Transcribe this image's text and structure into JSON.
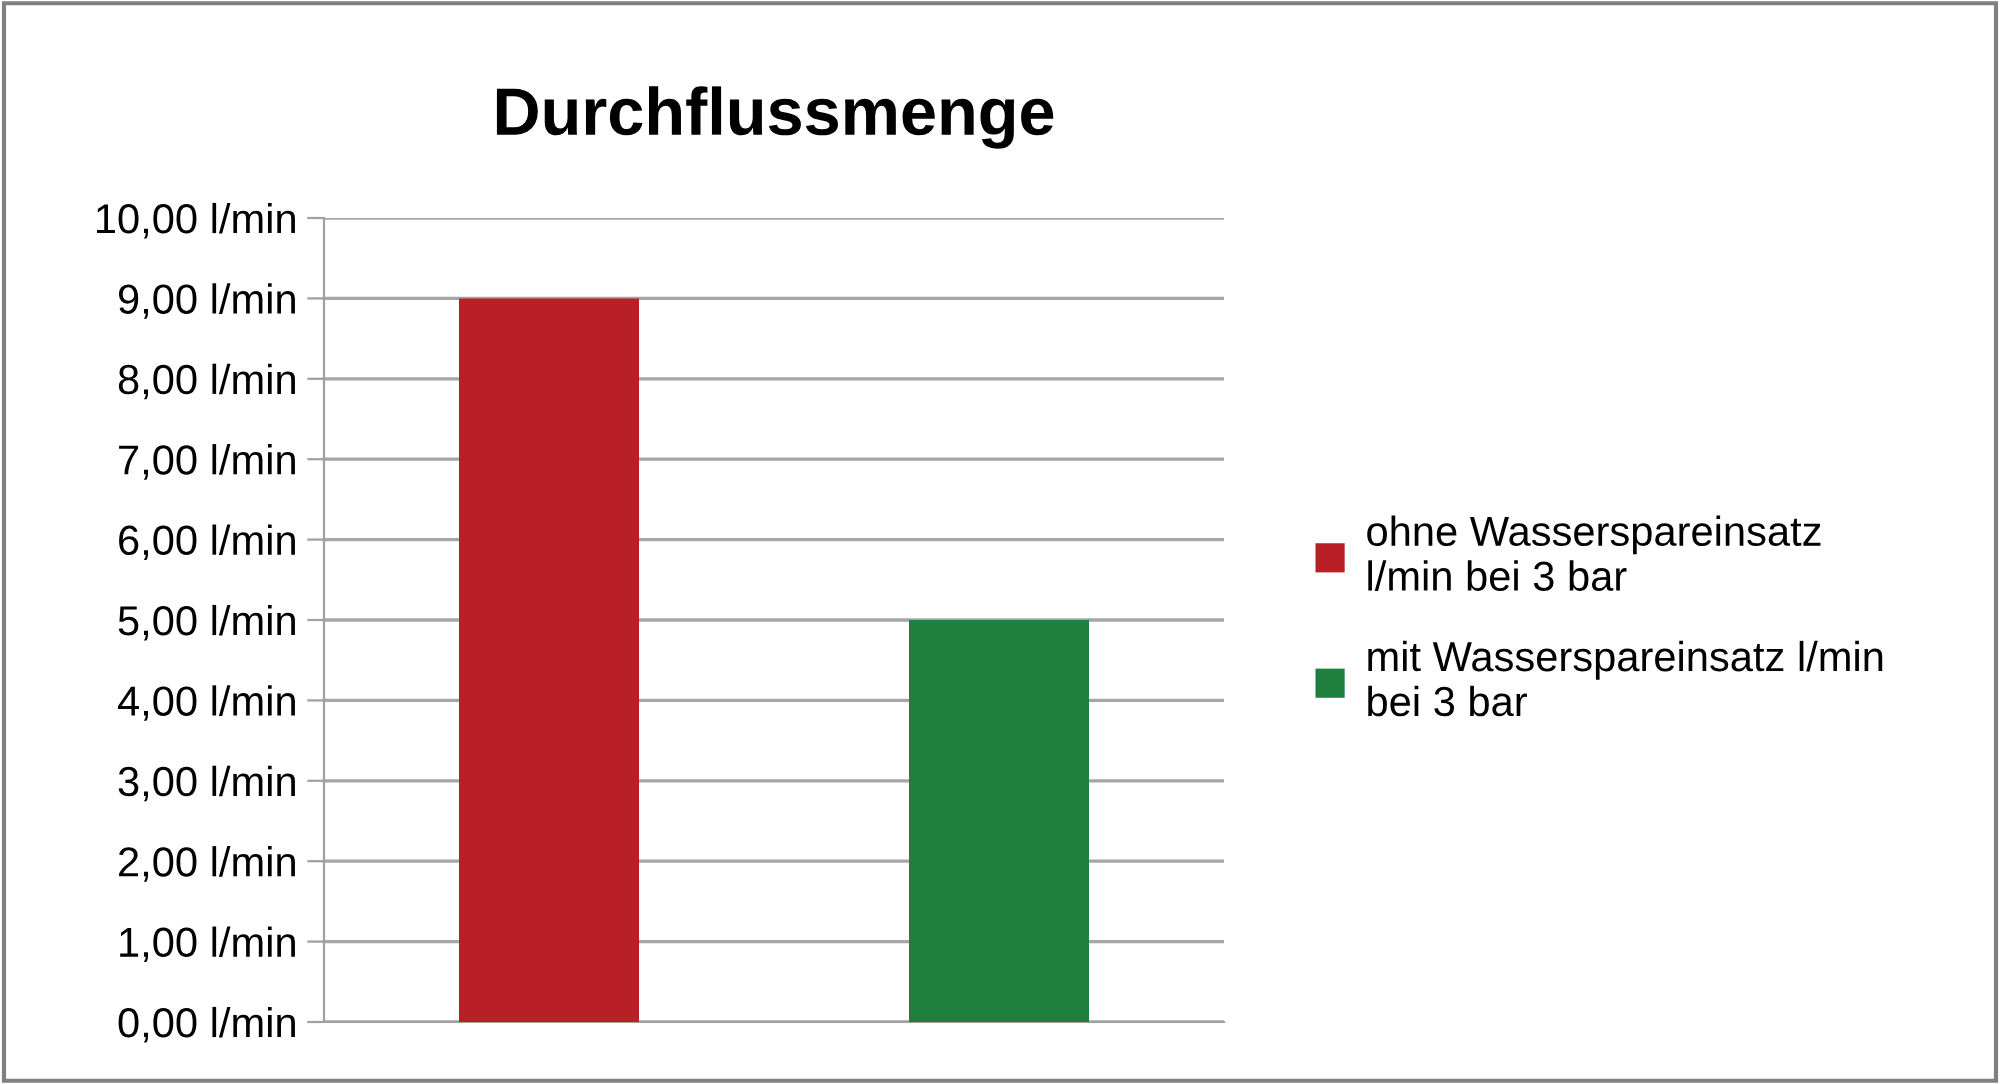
{
  "chart_data": {
    "type": "bar",
    "title": "Durchflussmenge",
    "categories": [
      null
    ],
    "series": [
      {
        "name": "ohne Wasserspareinsatz\nl/min bei 3 bar",
        "color": "#b82025",
        "values": [
          9.0
        ]
      },
      {
        "name": "mit Wasserspareinsatz l/min\nbei 3 bar",
        "color": "#1f7f3e",
        "values": [
          5.0
        ]
      }
    ],
    "ylim": [
      0,
      10
    ],
    "yticks": [
      {
        "value": 0,
        "label": "0,00 l/min"
      },
      {
        "value": 1,
        "label": "1,00 l/min"
      },
      {
        "value": 2,
        "label": "2,00 l/min"
      },
      {
        "value": 3,
        "label": "3,00 l/min"
      },
      {
        "value": 4,
        "label": "4,00 l/min"
      },
      {
        "value": 5,
        "label": "5,00 l/min"
      },
      {
        "value": 6,
        "label": "6,00 l/min"
      },
      {
        "value": 7,
        "label": "7,00 l/min"
      },
      {
        "value": 8,
        "label": "8,00 l/min"
      },
      {
        "value": 9,
        "label": "9,00 l/min"
      },
      {
        "value": 10,
        "label": "10,00 l/min"
      }
    ],
    "grid": "y",
    "legend": "right",
    "tick_labels": "y"
  }
}
